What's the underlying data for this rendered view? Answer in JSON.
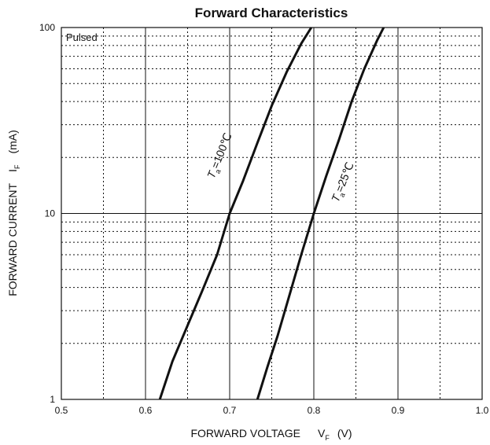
{
  "chart_data": {
    "type": "line",
    "title": "Forward   Characteristics",
    "xlabel": {
      "main": "FORWARD VOLTAGE",
      "symbol": "V",
      "subscript": "F",
      "unit": "(V)"
    },
    "ylabel": {
      "main": "FORWARD CURRENT",
      "symbol": "I",
      "subscript": "F",
      "unit": "(mA)"
    },
    "xlim": [
      0.5,
      1.0
    ],
    "ylim": [
      1,
      100
    ],
    "y_scale": "log",
    "x_ticks": [
      "0.5",
      "0.6",
      "0.7",
      "0.8",
      "0.9",
      "1.0"
    ],
    "y_ticks": [
      "1",
      "10",
      "100"
    ],
    "grid": true,
    "annotation": "Pulsed",
    "series": [
      {
        "name_parts": {
          "symbol": "T",
          "subscript": "a",
          "rest": "=100℃"
        },
        "x": [
          0.617,
          0.632,
          0.65,
          0.667,
          0.685,
          0.7,
          0.716,
          0.733,
          0.75,
          0.768,
          0.785,
          0.797
        ],
        "y": [
          1.0,
          1.6,
          2.5,
          3.8,
          6.0,
          10.0,
          15.0,
          24.0,
          38.0,
          58.0,
          82.0,
          100.0
        ]
      },
      {
        "name_parts": {
          "symbol": "T",
          "subscript": "a",
          "rest": "=25℃"
        },
        "x": [
          0.733,
          0.745,
          0.757,
          0.77,
          0.785,
          0.8,
          0.815,
          0.83,
          0.845,
          0.86,
          0.875,
          0.883
        ],
        "y": [
          1.0,
          1.5,
          2.2,
          3.5,
          6.0,
          10.0,
          16.0,
          25.0,
          40.0,
          60.0,
          85.0,
          100.0
        ]
      }
    ]
  }
}
